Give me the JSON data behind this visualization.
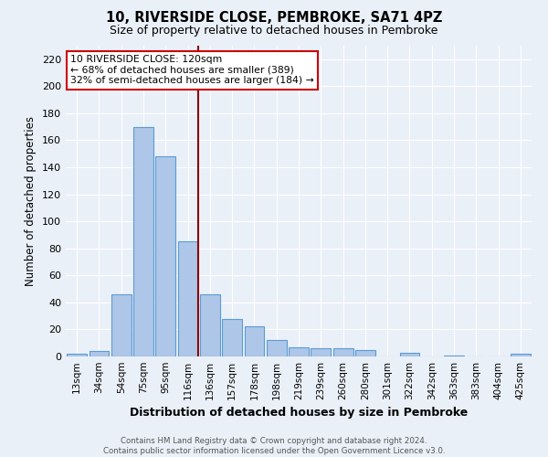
{
  "title": "10, RIVERSIDE CLOSE, PEMBROKE, SA71 4PZ",
  "subtitle": "Size of property relative to detached houses in Pembroke",
  "xlabel": "Distribution of detached houses by size in Pembroke",
  "ylabel": "Number of detached properties",
  "bar_labels": [
    "13sqm",
    "34sqm",
    "54sqm",
    "75sqm",
    "95sqm",
    "116sqm",
    "136sqm",
    "157sqm",
    "178sqm",
    "198sqm",
    "219sqm",
    "239sqm",
    "260sqm",
    "280sqm",
    "301sqm",
    "322sqm",
    "342sqm",
    "363sqm",
    "383sqm",
    "404sqm",
    "425sqm"
  ],
  "bar_values": [
    2,
    4,
    46,
    170,
    148,
    85,
    46,
    28,
    22,
    12,
    7,
    6,
    6,
    5,
    0,
    3,
    0,
    1,
    0,
    0,
    2
  ],
  "bar_color": "#aec6e8",
  "bar_edge_color": "#5b9bd5",
  "vline_color": "#8b0000",
  "annotation_title": "10 RIVERSIDE CLOSE: 120sqm",
  "annotation_line1": "← 68% of detached houses are smaller (389)",
  "annotation_line2": "32% of semi-detached houses are larger (184) →",
  "annotation_box_color": "#ffffff",
  "annotation_edge_color": "#cc0000",
  "ylim": [
    0,
    230
  ],
  "yticks": [
    0,
    20,
    40,
    60,
    80,
    100,
    120,
    140,
    160,
    180,
    200,
    220
  ],
  "footer1": "Contains HM Land Registry data © Crown copyright and database right 2024.",
  "footer2": "Contains public sector information licensed under the Open Government Licence v3.0.",
  "bg_color": "#eaf0f8",
  "grid_color": "#ffffff",
  "fig_width": 6.0,
  "fig_height": 5.0
}
